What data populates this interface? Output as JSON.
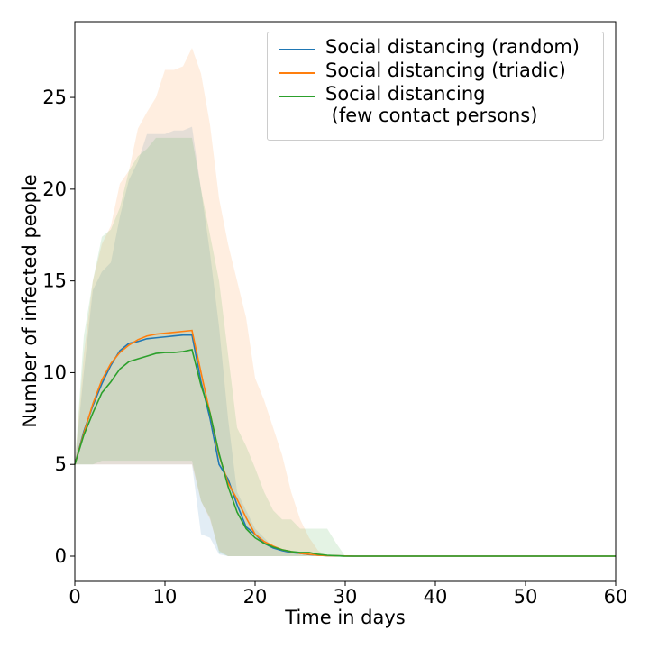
{
  "chart_data": {
    "type": "line",
    "xlabel": "Time in days",
    "ylabel": "Number of infected people",
    "xlim": [
      0,
      60
    ],
    "ylim": [
      -1.375,
      29.13
    ],
    "xticks": [
      0,
      10,
      20,
      30,
      40,
      50,
      60
    ],
    "yticks": [
      0,
      5,
      10,
      15,
      20,
      25
    ],
    "legend": "upper right",
    "x": [
      0,
      1,
      2,
      3,
      4,
      5,
      6,
      7,
      8,
      9,
      10,
      11,
      12,
      13,
      14,
      15,
      16,
      17,
      18,
      19,
      20,
      21,
      22,
      23,
      24,
      25,
      26,
      27,
      28,
      29,
      30,
      31,
      32,
      60
    ],
    "series": [
      {
        "name": "Social distancing (random)",
        "color": "#1f77b4",
        "values": [
          5,
          6.8,
          8.2,
          9.4,
          10.4,
          11.2,
          11.6,
          11.7,
          11.85,
          11.9,
          11.95,
          12.0,
          12.05,
          12.05,
          9.5,
          7.5,
          5,
          4.2,
          2.8,
          1.6,
          1.2,
          0.7,
          0.45,
          0.3,
          0.2,
          0.15,
          0.08,
          0.05,
          0.03,
          0.02,
          0.01,
          0,
          0,
          0
        ],
        "lower": [
          5,
          5,
          5,
          5,
          5,
          5,
          5,
          5,
          5,
          5,
          5,
          5,
          5,
          5,
          1.2,
          1,
          0.1,
          0,
          0,
          0,
          0,
          0,
          0,
          0,
          0,
          0,
          0,
          0,
          0,
          0,
          0,
          0,
          0,
          0
        ],
        "upper": [
          5,
          10,
          14.5,
          15.5,
          16,
          18.5,
          20.5,
          21.5,
          23,
          23,
          23,
          23.2,
          23.2,
          23.4,
          20,
          16.5,
          12.5,
          7.5,
          3.5,
          2.5,
          1.5,
          1,
          0.5,
          0.3,
          0.2,
          0.1,
          0,
          0,
          0,
          0,
          0,
          0,
          0,
          0
        ]
      },
      {
        "name": "Social distancing (triadic)",
        "color": "#ff7f0e",
        "values": [
          5,
          6.7,
          8.3,
          9.6,
          10.5,
          11.1,
          11.5,
          11.8,
          12.0,
          12.1,
          12.15,
          12.2,
          12.25,
          12.3,
          10,
          7.8,
          5.5,
          4.0,
          3.1,
          2.1,
          1.2,
          0.8,
          0.55,
          0.35,
          0.25,
          0.15,
          0.1,
          0.05,
          0.03,
          0.02,
          0.01,
          0,
          0,
          0
        ],
        "lower": [
          5,
          5,
          5,
          5,
          5,
          5,
          5,
          5,
          5,
          5,
          5,
          5,
          5,
          5,
          3,
          2,
          0.3,
          0,
          0,
          0,
          0,
          0,
          0,
          0,
          0,
          0,
          0,
          0,
          0,
          0,
          0,
          0,
          0,
          0
        ],
        "upper": [
          5,
          11,
          15,
          17,
          18,
          20.3,
          21,
          23.3,
          24.2,
          25,
          26.5,
          26.5,
          26.7,
          27.7,
          26.3,
          23.5,
          19.5,
          17,
          15,
          13,
          9.7,
          8.5,
          7,
          5.5,
          3.5,
          2,
          1,
          0.3,
          0,
          0,
          0,
          0,
          0,
          0
        ]
      },
      {
        "name": "Social distancing\n (few contact persons)",
        "color": "#2ca02c",
        "values": [
          5,
          6.6,
          7.8,
          8.9,
          9.5,
          10.2,
          10.6,
          10.75,
          10.9,
          11.05,
          11.1,
          11.1,
          11.15,
          11.25,
          9.3,
          7.8,
          5.6,
          3.8,
          2.4,
          1.5,
          1.0,
          0.7,
          0.5,
          0.35,
          0.25,
          0.2,
          0.2,
          0.1,
          0.05,
          0.02,
          0,
          0,
          0,
          0
        ],
        "lower": [
          5,
          5,
          5,
          5.2,
          5.2,
          5.2,
          5.2,
          5.2,
          5.2,
          5.2,
          5.2,
          5.2,
          5.2,
          5.2,
          3,
          2.1,
          0.2,
          0,
          0,
          0,
          0,
          0,
          0,
          0,
          0,
          0,
          0,
          0,
          0,
          0,
          0,
          0,
          0,
          0
        ],
        "upper": [
          5,
          12,
          15,
          17.4,
          17.8,
          19,
          21,
          21.8,
          22.2,
          22.8,
          22.8,
          22.8,
          22.8,
          22.8,
          20,
          17.5,
          15,
          11,
          7,
          6,
          4.8,
          3.5,
          2.5,
          2,
          2,
          1.5,
          1.5,
          1.5,
          1.5,
          0.7,
          0,
          0,
          0,
          0
        ]
      }
    ]
  }
}
